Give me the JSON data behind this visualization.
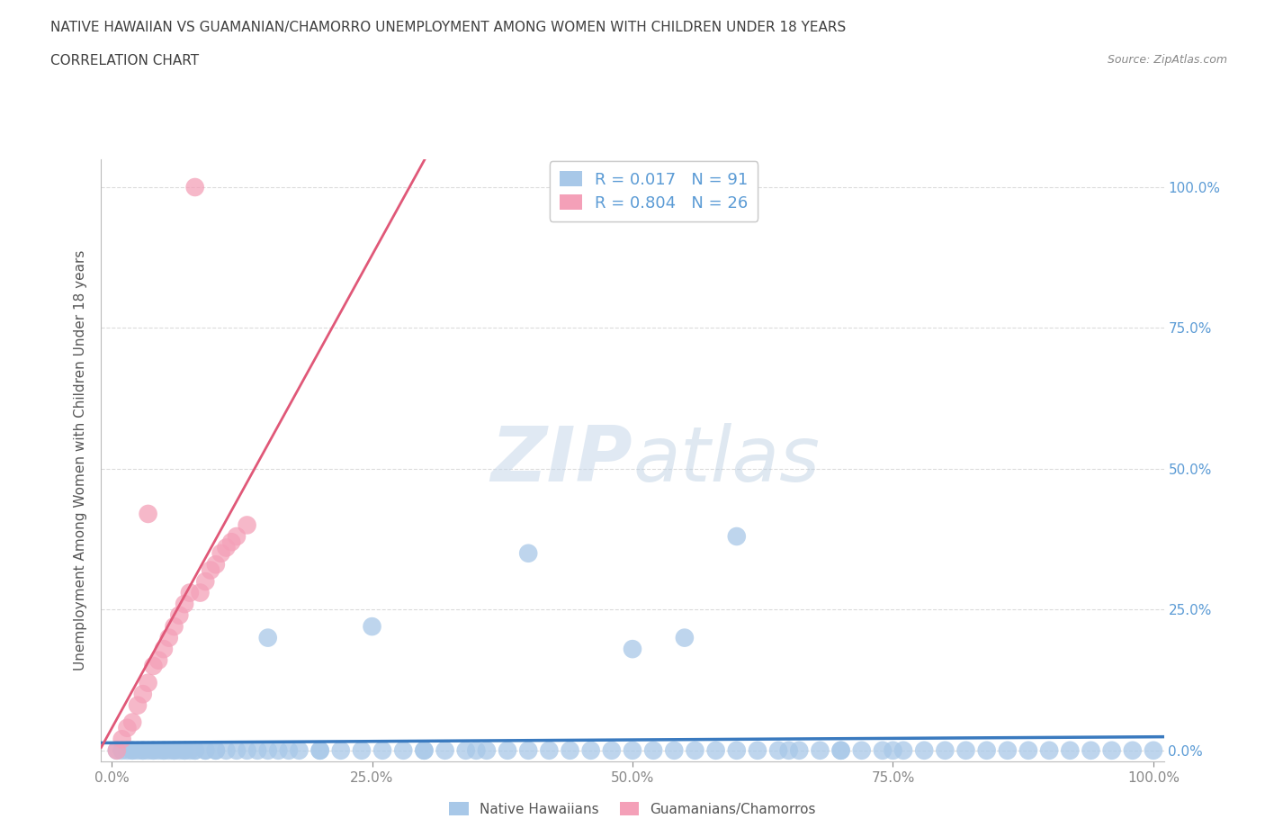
{
  "title_line1": "NATIVE HAWAIIAN VS GUAMANIAN/CHAMORRO UNEMPLOYMENT AMONG WOMEN WITH CHILDREN UNDER 18 YEARS",
  "title_line2": "CORRELATION CHART",
  "source_text": "Source: ZipAtlas.com",
  "ylabel": "Unemployment Among Women with Children Under 18 years",
  "x_tick_labels": [
    "0.0%",
    "25.0%",
    "50.0%",
    "75.0%",
    "100.0%"
  ],
  "x_tick_values": [
    0,
    25,
    50,
    75,
    100
  ],
  "y_tick_labels": [
    "0.0%",
    "25.0%",
    "50.0%",
    "75.0%",
    "100.0%"
  ],
  "y_tick_values": [
    0,
    25,
    50,
    75,
    100
  ],
  "blue_color": "#a8c8e8",
  "pink_color": "#f4a0b8",
  "blue_line_color": "#3a7abf",
  "pink_line_color": "#e05878",
  "watermark_color": "#ccd8e8",
  "background_color": "#ffffff",
  "title_color": "#404040",
  "axis_label_color": "#555555",
  "tick_label_color_right": "#5b9bd5",
  "tick_label_color_bottom": "#555555",
  "grid_color": "#cccccc",
  "nh_x": [
    0.5,
    1.0,
    1.5,
    2.0,
    2.5,
    3.0,
    3.5,
    4.0,
    4.5,
    5.0,
    5.5,
    6.0,
    6.5,
    7.0,
    7.5,
    8.0,
    9.0,
    10.0,
    11.0,
    12.0,
    13.0,
    14.0,
    15.0,
    16.0,
    17.0,
    18.0,
    20.0,
    22.0,
    24.0,
    26.0,
    28.0,
    30.0,
    32.0,
    34.0,
    36.0,
    38.0,
    40.0,
    42.0,
    44.0,
    46.0,
    48.0,
    50.0,
    52.0,
    54.0,
    56.0,
    58.0,
    60.0,
    62.0,
    64.0,
    66.0,
    68.0,
    70.0,
    72.0,
    74.0,
    76.0,
    78.0,
    80.0,
    82.0,
    84.0,
    86.0,
    88.0,
    90.0,
    92.0,
    94.0,
    96.0,
    98.0,
    100.0,
    2.0,
    3.0,
    4.0,
    5.0,
    6.0,
    7.0,
    8.0,
    9.0,
    10.0,
    15.0,
    20.0,
    25.0,
    30.0,
    35.0,
    40.0,
    50.0,
    55.0,
    60.0,
    65.0,
    70.0,
    75.0
  ],
  "nh_y": [
    0,
    0,
    0,
    0,
    0,
    0,
    0,
    0,
    0,
    0,
    0,
    0,
    0,
    0,
    0,
    0,
    0,
    0,
    0,
    0,
    0,
    0,
    0,
    0,
    0,
    0,
    0,
    0,
    0,
    0,
    0,
    0,
    0,
    0,
    0,
    0,
    0,
    0,
    0,
    0,
    0,
    0,
    0,
    0,
    0,
    0,
    0,
    0,
    0,
    0,
    0,
    0,
    0,
    0,
    0,
    0,
    0,
    0,
    0,
    0,
    0,
    0,
    0,
    0,
    0,
    0,
    0,
    0,
    0,
    0,
    0,
    0,
    0,
    0,
    0,
    0,
    20,
    0,
    22,
    0,
    0,
    35,
    18,
    20,
    38,
    0,
    0,
    0
  ],
  "gc_x": [
    0.5,
    1.0,
    1.5,
    2.0,
    2.5,
    3.0,
    3.5,
    4.0,
    4.5,
    5.0,
    5.5,
    6.0,
    6.5,
    7.0,
    7.5,
    8.0,
    8.5,
    9.0,
    9.5,
    10.0,
    10.5,
    11.0,
    11.5,
    12.0,
    13.0,
    3.5
  ],
  "gc_y": [
    0,
    2,
    4,
    5,
    8,
    10,
    12,
    15,
    16,
    18,
    20,
    22,
    24,
    26,
    28,
    100,
    28,
    30,
    32,
    33,
    35,
    36,
    37,
    38,
    40,
    42
  ]
}
